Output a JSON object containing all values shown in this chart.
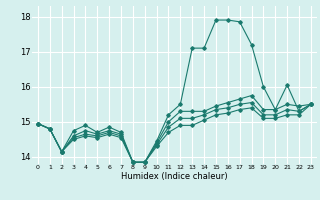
{
  "title": "",
  "xlabel": "Humidex (Indice chaleur)",
  "ylabel": "",
  "bg_color": "#d6f0ee",
  "grid_color": "#ffffff",
  "line_color": "#1a7a6e",
  "marker": "D",
  "markersize": 1.8,
  "linewidth": 0.8,
  "xlim": [
    -0.5,
    23.5
  ],
  "ylim": [
    13.8,
    18.3
  ],
  "yticks": [
    14,
    15,
    16,
    17,
    18
  ],
  "xticks": [
    0,
    1,
    2,
    3,
    4,
    5,
    6,
    7,
    8,
    9,
    10,
    11,
    12,
    13,
    14,
    15,
    16,
    17,
    18,
    19,
    20,
    21,
    22,
    23
  ],
  "lines": [
    [
      0,
      14.95,
      1,
      14.8,
      2,
      14.15,
      3,
      14.75,
      4,
      14.9,
      5,
      14.7,
      6,
      14.85,
      7,
      14.7,
      8,
      13.85,
      9,
      13.85,
      10,
      14.45,
      11,
      15.2,
      12,
      15.5,
      13,
      17.1,
      14,
      17.1,
      15,
      17.9,
      16,
      17.9,
      17,
      17.85,
      18,
      17.2,
      19,
      16.0,
      20,
      15.35,
      21,
      16.05,
      22,
      15.3,
      23,
      15.5
    ],
    [
      0,
      14.95,
      1,
      14.8,
      2,
      14.15,
      3,
      14.6,
      4,
      14.75,
      5,
      14.65,
      6,
      14.75,
      7,
      14.65,
      8,
      13.85,
      9,
      13.85,
      10,
      14.4,
      11,
      15.0,
      12,
      15.3,
      13,
      15.3,
      14,
      15.3,
      15,
      15.45,
      16,
      15.55,
      17,
      15.65,
      18,
      15.75,
      19,
      15.35,
      20,
      15.35,
      21,
      15.5,
      22,
      15.45,
      23,
      15.5
    ],
    [
      0,
      14.95,
      1,
      14.8,
      2,
      14.15,
      3,
      14.55,
      4,
      14.65,
      5,
      14.6,
      6,
      14.7,
      7,
      14.6,
      8,
      13.85,
      9,
      13.85,
      10,
      14.35,
      11,
      14.85,
      12,
      15.1,
      13,
      15.1,
      14,
      15.2,
      15,
      15.35,
      16,
      15.4,
      17,
      15.5,
      18,
      15.55,
      19,
      15.2,
      20,
      15.2,
      21,
      15.35,
      22,
      15.3,
      23,
      15.5
    ],
    [
      0,
      14.95,
      1,
      14.8,
      2,
      14.15,
      3,
      14.5,
      4,
      14.6,
      5,
      14.55,
      6,
      14.65,
      7,
      14.55,
      8,
      13.85,
      9,
      13.85,
      10,
      14.3,
      11,
      14.7,
      12,
      14.9,
      13,
      14.9,
      14,
      15.05,
      15,
      15.2,
      16,
      15.25,
      17,
      15.35,
      18,
      15.4,
      19,
      15.1,
      20,
      15.1,
      21,
      15.2,
      22,
      15.2,
      23,
      15.5
    ]
  ]
}
